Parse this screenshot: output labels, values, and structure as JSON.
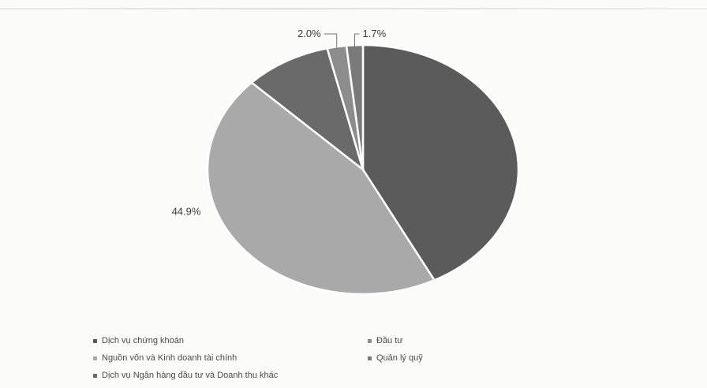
{
  "chart_data": {
    "type": "pie",
    "title": "",
    "slices": [
      {
        "name": "Dịch vụ chứng khoán",
        "value": 42.4,
        "color": "#5b5b5b",
        "label": ""
      },
      {
        "name": "Nguồn vốn và Kinh doanh tài chính",
        "value": 44.9,
        "color": "#a9a9a9",
        "label": "44.9%"
      },
      {
        "name": "Dịch vụ Ngân hàng đầu tư và Doanh thu khác",
        "value": 9.0,
        "color": "#6a6a6a",
        "label": ""
      },
      {
        "name": "Đầu tư",
        "value": 2.0,
        "color": "#8c8c8c",
        "label": "2.0%"
      },
      {
        "name": "Quản lý quỹ",
        "value": 1.7,
        "color": "#7a7a7a",
        "label": "1.7%"
      }
    ],
    "slice_order_clockwise_from_top": [
      0,
      1,
      2,
      3,
      4
    ],
    "legend_position": "bottom"
  },
  "legend": {
    "items": [
      {
        "label": "Dịch vụ chứng khoán"
      },
      {
        "label": "Đầu tư"
      },
      {
        "label": "Nguồn vốn và Kinh doanh tài chính"
      },
      {
        "label": "Quản lý quỹ"
      },
      {
        "label": "Dịch vụ Ngân hàng đầu tư và Doanh thu khác"
      }
    ]
  }
}
